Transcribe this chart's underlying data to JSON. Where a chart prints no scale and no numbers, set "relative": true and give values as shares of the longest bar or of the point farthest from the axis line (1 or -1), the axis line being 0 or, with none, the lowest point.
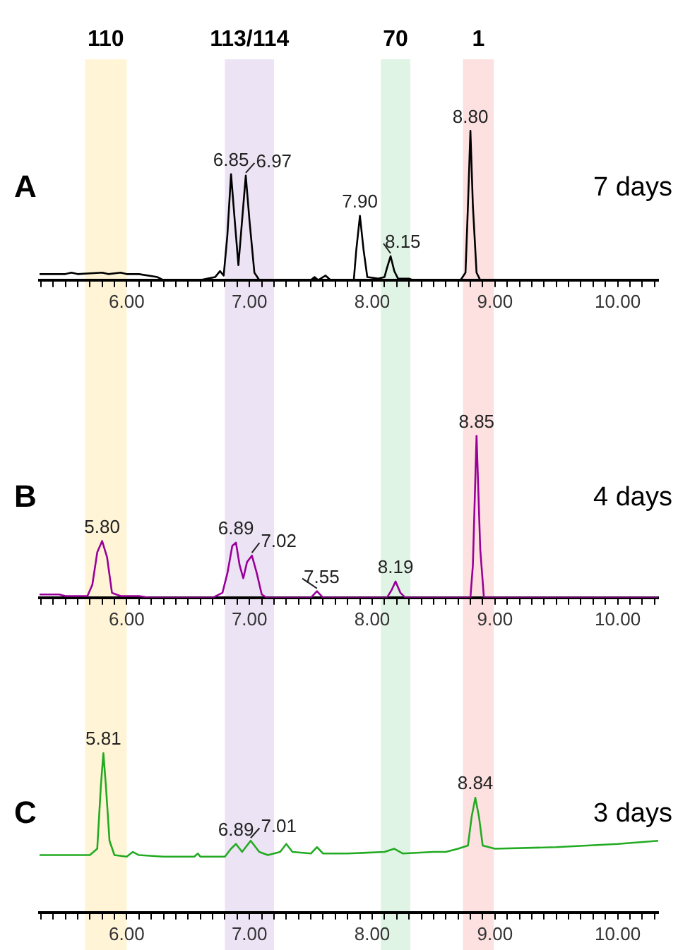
{
  "chart_data": [
    {
      "type": "line",
      "title": "A",
      "subtitle": "7 days",
      "relative": true,
      "grid": false,
      "legend": false,
      "marker": "none",
      "line_style": "solid",
      "xlim": [
        5.29,
        10.33
      ],
      "xticks": [
        {
          "value": 5.3,
          "label": null
        },
        {
          "value": 5.4,
          "label": null
        },
        {
          "value": 5.5,
          "label": null
        },
        {
          "value": 5.6,
          "label": null
        },
        {
          "value": 5.7,
          "label": null
        },
        {
          "value": 5.8,
          "label": null
        },
        {
          "value": 5.9,
          "label": null
        },
        {
          "value": 6,
          "label": "6.00"
        },
        {
          "value": 6.1,
          "label": null
        },
        {
          "value": 6.2,
          "label": null
        },
        {
          "value": 6.3,
          "label": null
        },
        {
          "value": 6.4,
          "label": null
        },
        {
          "value": 6.5,
          "label": null
        },
        {
          "value": 6.6,
          "label": null
        },
        {
          "value": 6.7,
          "label": null
        },
        {
          "value": 6.8,
          "label": null
        },
        {
          "value": 6.9,
          "label": null
        },
        {
          "value": 7,
          "label": "7.00"
        },
        {
          "value": 7.1,
          "label": null
        },
        {
          "value": 7.2,
          "label": null
        },
        {
          "value": 7.3,
          "label": null
        },
        {
          "value": 7.4,
          "label": null
        },
        {
          "value": 7.5,
          "label": null
        },
        {
          "value": 7.6,
          "label": null
        },
        {
          "value": 7.7,
          "label": null
        },
        {
          "value": 7.8,
          "label": null
        },
        {
          "value": 7.9,
          "label": null
        },
        {
          "value": 8,
          "label": "8.00"
        },
        {
          "value": 8.1,
          "label": null
        },
        {
          "value": 8.2,
          "label": null
        },
        {
          "value": 8.3,
          "label": null
        },
        {
          "value": 8.4,
          "label": null
        },
        {
          "value": 8.5,
          "label": null
        },
        {
          "value": 8.6,
          "label": null
        },
        {
          "value": 8.7,
          "label": null
        },
        {
          "value": 8.8,
          "label": null
        },
        {
          "value": 8.9,
          "label": null
        },
        {
          "value": 9,
          "label": "9.00"
        },
        {
          "value": 9.1,
          "label": null
        },
        {
          "value": 9.2,
          "label": null
        },
        {
          "value": 9.3,
          "label": null
        },
        {
          "value": 9.4,
          "label": null
        },
        {
          "value": 9.5,
          "label": null
        },
        {
          "value": 9.6,
          "label": null
        },
        {
          "value": 9.7,
          "label": null
        },
        {
          "value": 9.8,
          "label": null
        },
        {
          "value": 9.9,
          "label": null
        },
        {
          "value": 10,
          "label": "10.00"
        },
        {
          "value": 10.1,
          "label": null
        },
        {
          "value": 10.2,
          "label": null
        },
        {
          "value": 10.3,
          "label": null
        }
      ],
      "bands": [
        {
          "axis": "x",
          "from": 5.66,
          "to": 6.0,
          "label": "110",
          "color": "#fff5d6"
        },
        {
          "axis": "x",
          "from": 6.8,
          "to": 7.2,
          "label": "113/114",
          "color": "#ece4f4"
        },
        {
          "axis": "x",
          "from": 8.07,
          "to": 8.31,
          "label": "70",
          "color": "#e0f4e6"
        },
        {
          "axis": "x",
          "from": 8.74,
          "to": 8.99,
          "label": "1",
          "color": "#fde0e0"
        }
      ],
      "series": [
        {
          "color": "#000000",
          "x": [
            5.29,
            5.5,
            5.55,
            5.6,
            5.8,
            5.85,
            5.95,
            6.0,
            6.1,
            6.25,
            6.3,
            6.6,
            6.72,
            6.76,
            6.79,
            6.82,
            6.85,
            6.88,
            6.91,
            6.94,
            6.97,
            7.0,
            7.04,
            7.08,
            7.5,
            7.53,
            7.56,
            7.62,
            7.66,
            7.85,
            7.87,
            7.9,
            7.93,
            7.96,
            8.05,
            8.1,
            8.12,
            8.15,
            8.18,
            8.21,
            8.3,
            8.33,
            8.72,
            8.76,
            8.78,
            8.8,
            8.82,
            8.85,
            8.88,
            10.33
          ],
          "values": [
            0.04,
            0.04,
            0.05,
            0.04,
            0.05,
            0.04,
            0.05,
            0.04,
            0.04,
            0.02,
            0,
            0,
            0.02,
            0.06,
            0.03,
            0.3,
            0.71,
            0.4,
            0.1,
            0.4,
            0.7,
            0.4,
            0.05,
            0,
            0,
            0.02,
            0,
            0.03,
            0,
            0,
            0.2,
            0.43,
            0.2,
            0.02,
            0.01,
            0.02,
            0.08,
            0.16,
            0.06,
            0.01,
            0.01,
            0,
            0,
            0.05,
            0.5,
            1,
            0.5,
            0.05,
            0,
            0
          ]
        }
      ],
      "annotations": [
        {
          "text": "6.85",
          "x": 6.85,
          "y": 0.71
        },
        {
          "text": "6.97",
          "x": 6.97,
          "y": 0.7
        },
        {
          "text": "7.90",
          "x": 7.9,
          "y": 0.43
        },
        {
          "text": "8.15",
          "x": 8.15,
          "y": 0.16
        },
        {
          "text": "8.80",
          "x": 8.8,
          "y": 1
        }
      ]
    },
    {
      "type": "line",
      "title": "B",
      "subtitle": "4 days",
      "relative": true,
      "grid": false,
      "legend": false,
      "marker": "none",
      "line_style": "solid",
      "xlim": [
        5.29,
        10.33
      ],
      "xticks": [
        {
          "value": 5.3,
          "label": null
        },
        {
          "value": 5.4,
          "label": null
        },
        {
          "value": 5.5,
          "label": null
        },
        {
          "value": 5.6,
          "label": null
        },
        {
          "value": 5.7,
          "label": null
        },
        {
          "value": 5.8,
          "label": null
        },
        {
          "value": 5.9,
          "label": null
        },
        {
          "value": 6,
          "label": "6.00"
        },
        {
          "value": 6.1,
          "label": null
        },
        {
          "value": 6.2,
          "label": null
        },
        {
          "value": 6.3,
          "label": null
        },
        {
          "value": 6.4,
          "label": null
        },
        {
          "value": 6.5,
          "label": null
        },
        {
          "value": 6.6,
          "label": null
        },
        {
          "value": 6.7,
          "label": null
        },
        {
          "value": 6.8,
          "label": null
        },
        {
          "value": 6.9,
          "label": null
        },
        {
          "value": 7,
          "label": "7.00"
        },
        {
          "value": 7.1,
          "label": null
        },
        {
          "value": 7.2,
          "label": null
        },
        {
          "value": 7.3,
          "label": null
        },
        {
          "value": 7.4,
          "label": null
        },
        {
          "value": 7.5,
          "label": null
        },
        {
          "value": 7.6,
          "label": null
        },
        {
          "value": 7.7,
          "label": null
        },
        {
          "value": 7.8,
          "label": null
        },
        {
          "value": 7.9,
          "label": null
        },
        {
          "value": 8,
          "label": "8.00"
        },
        {
          "value": 8.1,
          "label": null
        },
        {
          "value": 8.2,
          "label": null
        },
        {
          "value": 8.3,
          "label": null
        },
        {
          "value": 8.4,
          "label": null
        },
        {
          "value": 8.5,
          "label": null
        },
        {
          "value": 8.6,
          "label": null
        },
        {
          "value": 8.7,
          "label": null
        },
        {
          "value": 8.8,
          "label": null
        },
        {
          "value": 8.9,
          "label": null
        },
        {
          "value": 9,
          "label": "9.00"
        },
        {
          "value": 9.1,
          "label": null
        },
        {
          "value": 9.2,
          "label": null
        },
        {
          "value": 9.3,
          "label": null
        },
        {
          "value": 9.4,
          "label": null
        },
        {
          "value": 9.5,
          "label": null
        },
        {
          "value": 9.6,
          "label": null
        },
        {
          "value": 9.7,
          "label": null
        },
        {
          "value": 9.8,
          "label": null
        },
        {
          "value": 9.9,
          "label": null
        },
        {
          "value": 10,
          "label": "10.00"
        },
        {
          "value": 10.1,
          "label": null
        },
        {
          "value": 10.2,
          "label": null
        },
        {
          "value": 10.3,
          "label": null
        }
      ],
      "bands": [
        {
          "axis": "x",
          "from": 5.66,
          "to": 6.0,
          "color": "#fff5d6"
        },
        {
          "axis": "x",
          "from": 6.8,
          "to": 7.2,
          "color": "#ece4f4"
        },
        {
          "axis": "x",
          "from": 8.07,
          "to": 8.31,
          "color": "#e0f4e6"
        },
        {
          "axis": "x",
          "from": 8.74,
          "to": 8.99,
          "color": "#fde0e0"
        }
      ],
      "series": [
        {
          "color": "#990099",
          "x": [
            5.29,
            5.45,
            5.5,
            5.68,
            5.72,
            5.76,
            5.8,
            5.84,
            5.88,
            5.95,
            6.1,
            6.18,
            6.7,
            6.78,
            6.82,
            6.86,
            6.89,
            6.92,
            6.95,
            6.98,
            7.02,
            7.06,
            7.1,
            7.14,
            7.5,
            7.55,
            7.6,
            8.12,
            8.16,
            8.19,
            8.23,
            8.27,
            8.8,
            8.82,
            8.85,
            8.88,
            8.91,
            10.33
          ],
          "values": [
            0.02,
            0.02,
            0.01,
            0.01,
            0.08,
            0.28,
            0.35,
            0.25,
            0.03,
            0.01,
            0.01,
            0,
            0,
            0.03,
            0.15,
            0.32,
            0.34,
            0.2,
            0.12,
            0.22,
            0.26,
            0.15,
            0.02,
            0,
            0,
            0.04,
            0,
            0,
            0.05,
            0.1,
            0.03,
            0,
            0,
            0.2,
            1,
            0.3,
            0,
            0
          ]
        }
      ],
      "annotations": [
        {
          "text": "5.80",
          "x": 5.8,
          "y": 0.35
        },
        {
          "text": "6.89",
          "x": 6.89,
          "y": 0.34
        },
        {
          "text": "7.02",
          "x": 7.02,
          "y": 0.26
        },
        {
          "text": "7.55",
          "x": 7.55,
          "y": 0.04
        },
        {
          "text": "8.19",
          "x": 8.19,
          "y": 0.1
        },
        {
          "text": "8.85",
          "x": 8.85,
          "y": 1
        }
      ]
    },
    {
      "type": "line",
      "title": "C",
      "subtitle": "3 days",
      "relative": true,
      "grid": false,
      "legend": false,
      "marker": "none",
      "line_style": "solid",
      "xlim": [
        5.29,
        10.33
      ],
      "xticks": [
        {
          "value": 5.3,
          "label": null
        },
        {
          "value": 5.4,
          "label": null
        },
        {
          "value": 5.5,
          "label": null
        },
        {
          "value": 5.6,
          "label": null
        },
        {
          "value": 5.7,
          "label": null
        },
        {
          "value": 5.8,
          "label": null
        },
        {
          "value": 5.9,
          "label": null
        },
        {
          "value": 6,
          "label": "6.00"
        },
        {
          "value": 6.1,
          "label": null
        },
        {
          "value": 6.2,
          "label": null
        },
        {
          "value": 6.3,
          "label": null
        },
        {
          "value": 6.4,
          "label": null
        },
        {
          "value": 6.5,
          "label": null
        },
        {
          "value": 6.6,
          "label": null
        },
        {
          "value": 6.7,
          "label": null
        },
        {
          "value": 6.8,
          "label": null
        },
        {
          "value": 6.9,
          "label": null
        },
        {
          "value": 7,
          "label": "7.00"
        },
        {
          "value": 7.1,
          "label": null
        },
        {
          "value": 7.2,
          "label": null
        },
        {
          "value": 7.3,
          "label": null
        },
        {
          "value": 7.4,
          "label": null
        },
        {
          "value": 7.5,
          "label": null
        },
        {
          "value": 7.6,
          "label": null
        },
        {
          "value": 7.7,
          "label": null
        },
        {
          "value": 7.8,
          "label": null
        },
        {
          "value": 7.9,
          "label": null
        },
        {
          "value": 8,
          "label": "8.00"
        },
        {
          "value": 8.1,
          "label": null
        },
        {
          "value": 8.2,
          "label": null
        },
        {
          "value": 8.3,
          "label": null
        },
        {
          "value": 8.4,
          "label": null
        },
        {
          "value": 8.5,
          "label": null
        },
        {
          "value": 8.6,
          "label": null
        },
        {
          "value": 8.7,
          "label": null
        },
        {
          "value": 8.8,
          "label": null
        },
        {
          "value": 8.9,
          "label": null
        },
        {
          "value": 9,
          "label": "9.00"
        },
        {
          "value": 9.1,
          "label": null
        },
        {
          "value": 9.2,
          "label": null
        },
        {
          "value": 9.3,
          "label": null
        },
        {
          "value": 9.4,
          "label": null
        },
        {
          "value": 9.5,
          "label": null
        },
        {
          "value": 9.6,
          "label": null
        },
        {
          "value": 9.7,
          "label": null
        },
        {
          "value": 9.8,
          "label": null
        },
        {
          "value": 9.9,
          "label": null
        },
        {
          "value": 10,
          "label": "10.00"
        },
        {
          "value": 10.1,
          "label": null
        },
        {
          "value": 10.2,
          "label": null
        },
        {
          "value": 10.3,
          "label": null
        }
      ],
      "bands": [
        {
          "axis": "x",
          "from": 5.66,
          "to": 6.0,
          "color": "#fff5d6"
        },
        {
          "axis": "x",
          "from": 6.8,
          "to": 7.2,
          "color": "#ece4f4"
        },
        {
          "axis": "x",
          "from": 8.07,
          "to": 8.31,
          "color": "#e0f4e6"
        },
        {
          "axis": "x",
          "from": 8.74,
          "to": 8.99,
          "color": "#fde0e0"
        }
      ],
      "series": [
        {
          "color": "#22aa22",
          "x": [
            5.29,
            5.7,
            5.76,
            5.79,
            5.81,
            5.83,
            5.86,
            5.9,
            6.0,
            6.05,
            6.1,
            6.3,
            6.55,
            6.58,
            6.6,
            6.8,
            6.85,
            6.89,
            6.94,
            7.01,
            7.08,
            7.15,
            7.25,
            7.3,
            7.35,
            7.5,
            7.55,
            7.6,
            7.8,
            8.1,
            8.18,
            8.25,
            8.5,
            8.6,
            8.7,
            8.78,
            8.81,
            8.84,
            8.87,
            8.9,
            9.0,
            9.5,
            10.0,
            10.33
          ],
          "values": [
            0.36,
            0.36,
            0.4,
            0.8,
            1,
            0.8,
            0.45,
            0.36,
            0.35,
            0.38,
            0.36,
            0.35,
            0.35,
            0.37,
            0.35,
            0.35,
            0.4,
            0.43,
            0.38,
            0.45,
            0.38,
            0.36,
            0.38,
            0.43,
            0.38,
            0.37,
            0.41,
            0.37,
            0.37,
            0.38,
            0.4,
            0.37,
            0.38,
            0.38,
            0.4,
            0.42,
            0.6,
            0.72,
            0.6,
            0.42,
            0.4,
            0.41,
            0.43,
            0.45
          ]
        }
      ],
      "annotations": [
        {
          "text": "5.81",
          "x": 5.81,
          "y": 1
        },
        {
          "text": "6.89",
          "x": 6.89,
          "y": 0.43
        },
        {
          "text": "7.01",
          "x": 7.01,
          "y": 0.45
        },
        {
          "text": "8.84",
          "x": 8.84,
          "y": 0.72
        }
      ]
    }
  ]
}
